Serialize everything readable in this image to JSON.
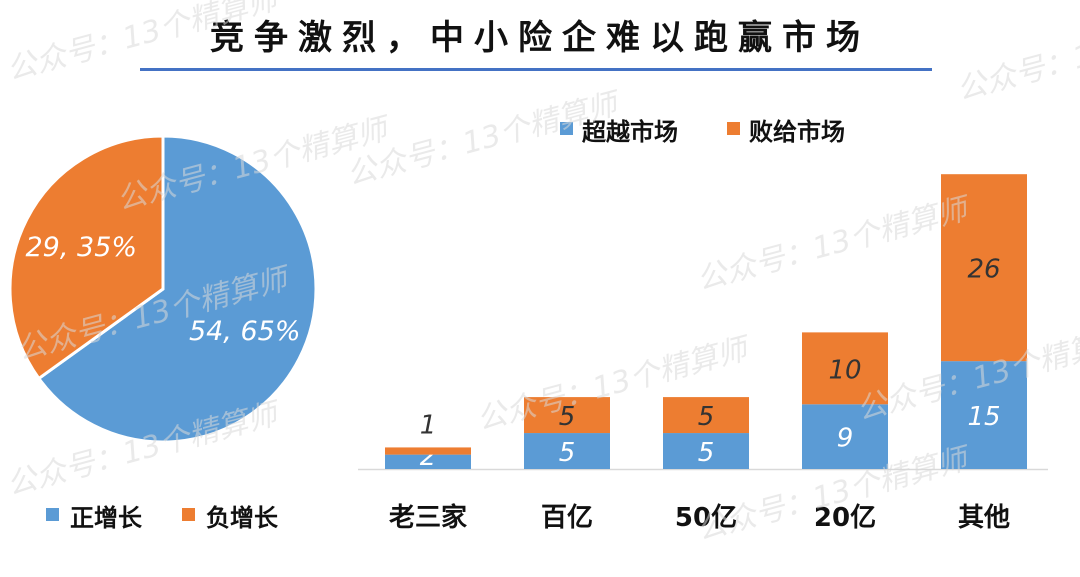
{
  "title": "竞争激烈，中小险企难以跑赢市场",
  "watermark_text": "公众号：13个精算师",
  "colors": {
    "blue": "#5b9bd5",
    "orange": "#ed7d31",
    "title_line": "#4472c4"
  },
  "chart_data": [
    {
      "type": "pie",
      "slices": [
        {
          "name": "正增长",
          "value": 54,
          "percent": 65,
          "label": "54, 65%",
          "color": "#5b9bd5"
        },
        {
          "name": "负增长",
          "value": 29,
          "percent": 35,
          "label": "29, 35%",
          "color": "#ed7d31"
        }
      ],
      "legend": {
        "items": [
          "正增长",
          "负增长"
        ],
        "position": "bottom"
      }
    },
    {
      "type": "bar",
      "stacked": true,
      "categories": [
        "老三家",
        "百亿",
        "50亿",
        "20亿",
        "其他"
      ],
      "series": [
        {
          "name": "超越市场",
          "values": [
            2,
            5,
            5,
            9,
            15
          ],
          "color": "#5b9bd5"
        },
        {
          "name": "败给市场",
          "values": [
            1,
            5,
            5,
            10,
            26
          ],
          "color": "#ed7d31"
        }
      ],
      "legend": {
        "position": "top"
      },
      "ylim": [
        0,
        42
      ]
    }
  ]
}
